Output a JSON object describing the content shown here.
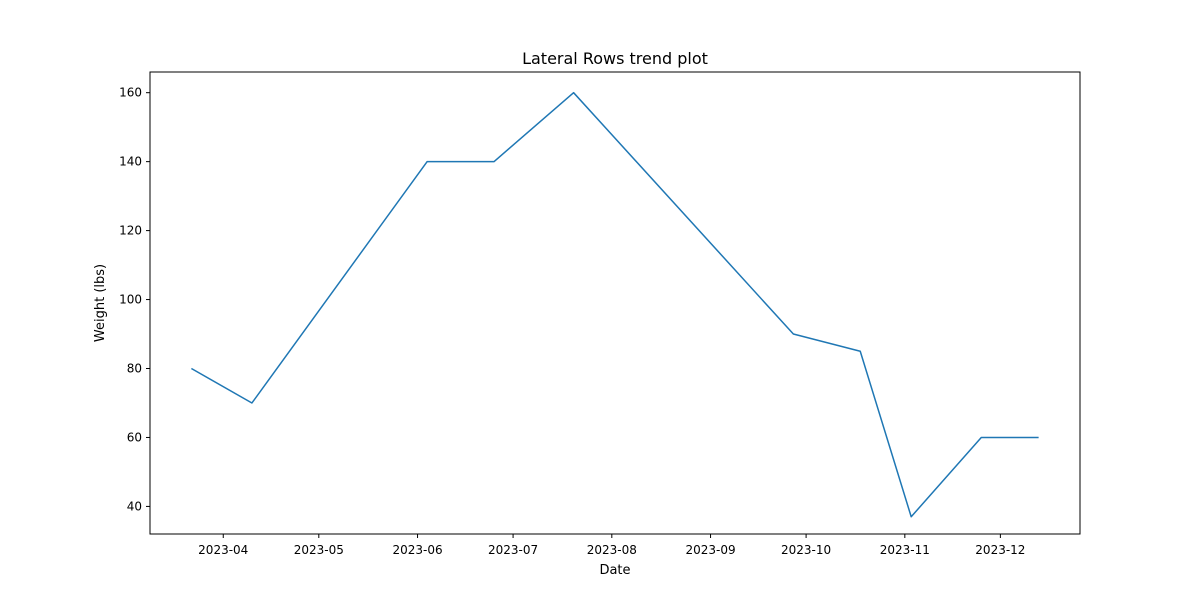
{
  "chart_data": {
    "type": "line",
    "title": "Lateral Rows trend plot",
    "xlabel": "Date",
    "ylabel": "Weight (lbs)",
    "xlim": [
      "2023-03-09",
      "2023-12-26"
    ],
    "ylim": [
      32,
      166
    ],
    "x_ticks": [
      "2023-04",
      "2023-05",
      "2023-06",
      "2023-07",
      "2023-08",
      "2023-09",
      "2023-10",
      "2023-11",
      "2023-12"
    ],
    "y_ticks": [
      40,
      60,
      80,
      100,
      120,
      140,
      160
    ],
    "grid": false,
    "legend": "none",
    "series": [
      {
        "color": "#1f77b4",
        "points": [
          {
            "x": "2023-03-22",
            "y": 80
          },
          {
            "x": "2023-04-10",
            "y": 70
          },
          {
            "x": "2023-06-04",
            "y": 140
          },
          {
            "x": "2023-06-25",
            "y": 140
          },
          {
            "x": "2023-07-20",
            "y": 160
          },
          {
            "x": "2023-09-27",
            "y": 90
          },
          {
            "x": "2023-10-18",
            "y": 85
          },
          {
            "x": "2023-11-03",
            "y": 37
          },
          {
            "x": "2023-11-25",
            "y": 60
          },
          {
            "x": "2023-12-13",
            "y": 60
          }
        ]
      }
    ]
  }
}
